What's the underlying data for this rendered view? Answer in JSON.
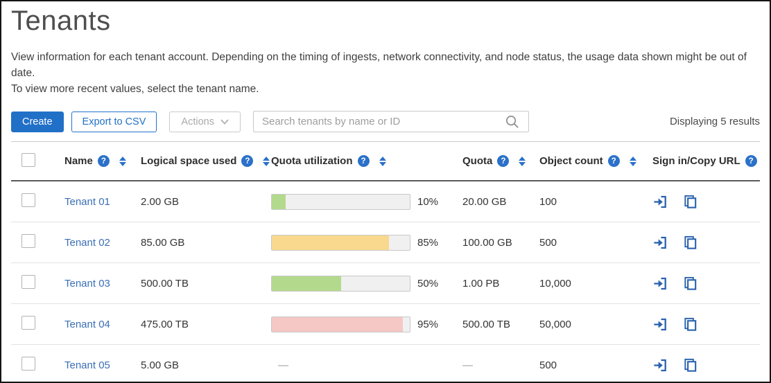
{
  "page": {
    "title": "Tenants",
    "description_line1": "View information for each tenant account. Depending on the timing of ingests, network connectivity, and node status, the usage data shown might be out of date.",
    "description_line2": "To view more recent values, select the tenant name."
  },
  "toolbar": {
    "create_label": "Create",
    "export_label": "Export to CSV",
    "actions_label": "Actions",
    "search_placeholder": "Search tenants by name or ID",
    "results_text": "Displaying 5 results"
  },
  "icons": {
    "help_glyph": "?"
  },
  "colors": {
    "accent_blue": "#2170c8",
    "link_blue": "#3a6eb5",
    "icon_blue": "#2a62ad",
    "help_blue": "#2b71c9",
    "bar_green": "#b3da8c",
    "bar_yellow": "#f8d98d",
    "bar_red": "#f5c7c5",
    "bar_track": "#f0f0f0"
  },
  "table": {
    "columns": [
      {
        "label": "Name"
      },
      {
        "label": "Logical space used"
      },
      {
        "label": "Quota utilization"
      },
      {
        "label": "Quota"
      },
      {
        "label": "Object count"
      },
      {
        "label": "Sign in/Copy URL"
      }
    ],
    "rows": [
      {
        "name": "Tenant 01",
        "logical_space_used": "2.00 GB",
        "quota_utilization_percent": 10,
        "quota_utilization_label": "10%",
        "bar_color": "#b3da8c",
        "quota": "20.00 GB",
        "object_count": "100"
      },
      {
        "name": "Tenant 02",
        "logical_space_used": "85.00 GB",
        "quota_utilization_percent": 85,
        "quota_utilization_label": "85%",
        "bar_color": "#f8d98d",
        "quota": "100.00 GB",
        "object_count": "500"
      },
      {
        "name": "Tenant 03",
        "logical_space_used": "500.00 TB",
        "quota_utilization_percent": 50,
        "quota_utilization_label": "50%",
        "bar_color": "#b3da8c",
        "quota": "1.00 PB",
        "object_count": "10,000"
      },
      {
        "name": "Tenant 04",
        "logical_space_used": "475.00 TB",
        "quota_utilization_percent": 95,
        "quota_utilization_label": "95%",
        "bar_color": "#f5c7c5",
        "quota": "500.00 TB",
        "object_count": "50,000"
      },
      {
        "name": "Tenant 05",
        "logical_space_used": "5.00 GB",
        "quota_utilization_percent": null,
        "quota_utilization_label": "—",
        "bar_color": null,
        "quota": "—",
        "object_count": "500"
      }
    ]
  }
}
